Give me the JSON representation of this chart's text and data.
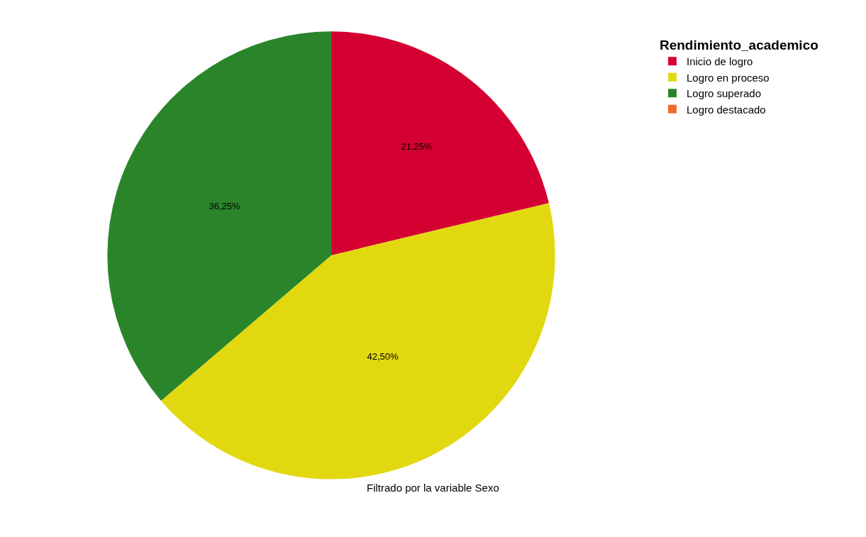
{
  "chart_data": {
    "type": "pie",
    "legend_title": "Rendimiento_academico",
    "categories": [
      "Inicio de logro",
      "Logro en proceso",
      "Logro superado",
      "Logro destacado"
    ],
    "values": [
      21.25,
      42.5,
      36.25,
      0
    ],
    "value_labels": [
      "21,25%",
      "42,50%",
      "36,25%",
      null
    ],
    "colors": [
      "#d50032",
      "#e2d810",
      "#2a852a",
      "#f26b2e"
    ],
    "legend": "top right",
    "annotations": [
      "Filtrado por la variable Sexo"
    ]
  }
}
